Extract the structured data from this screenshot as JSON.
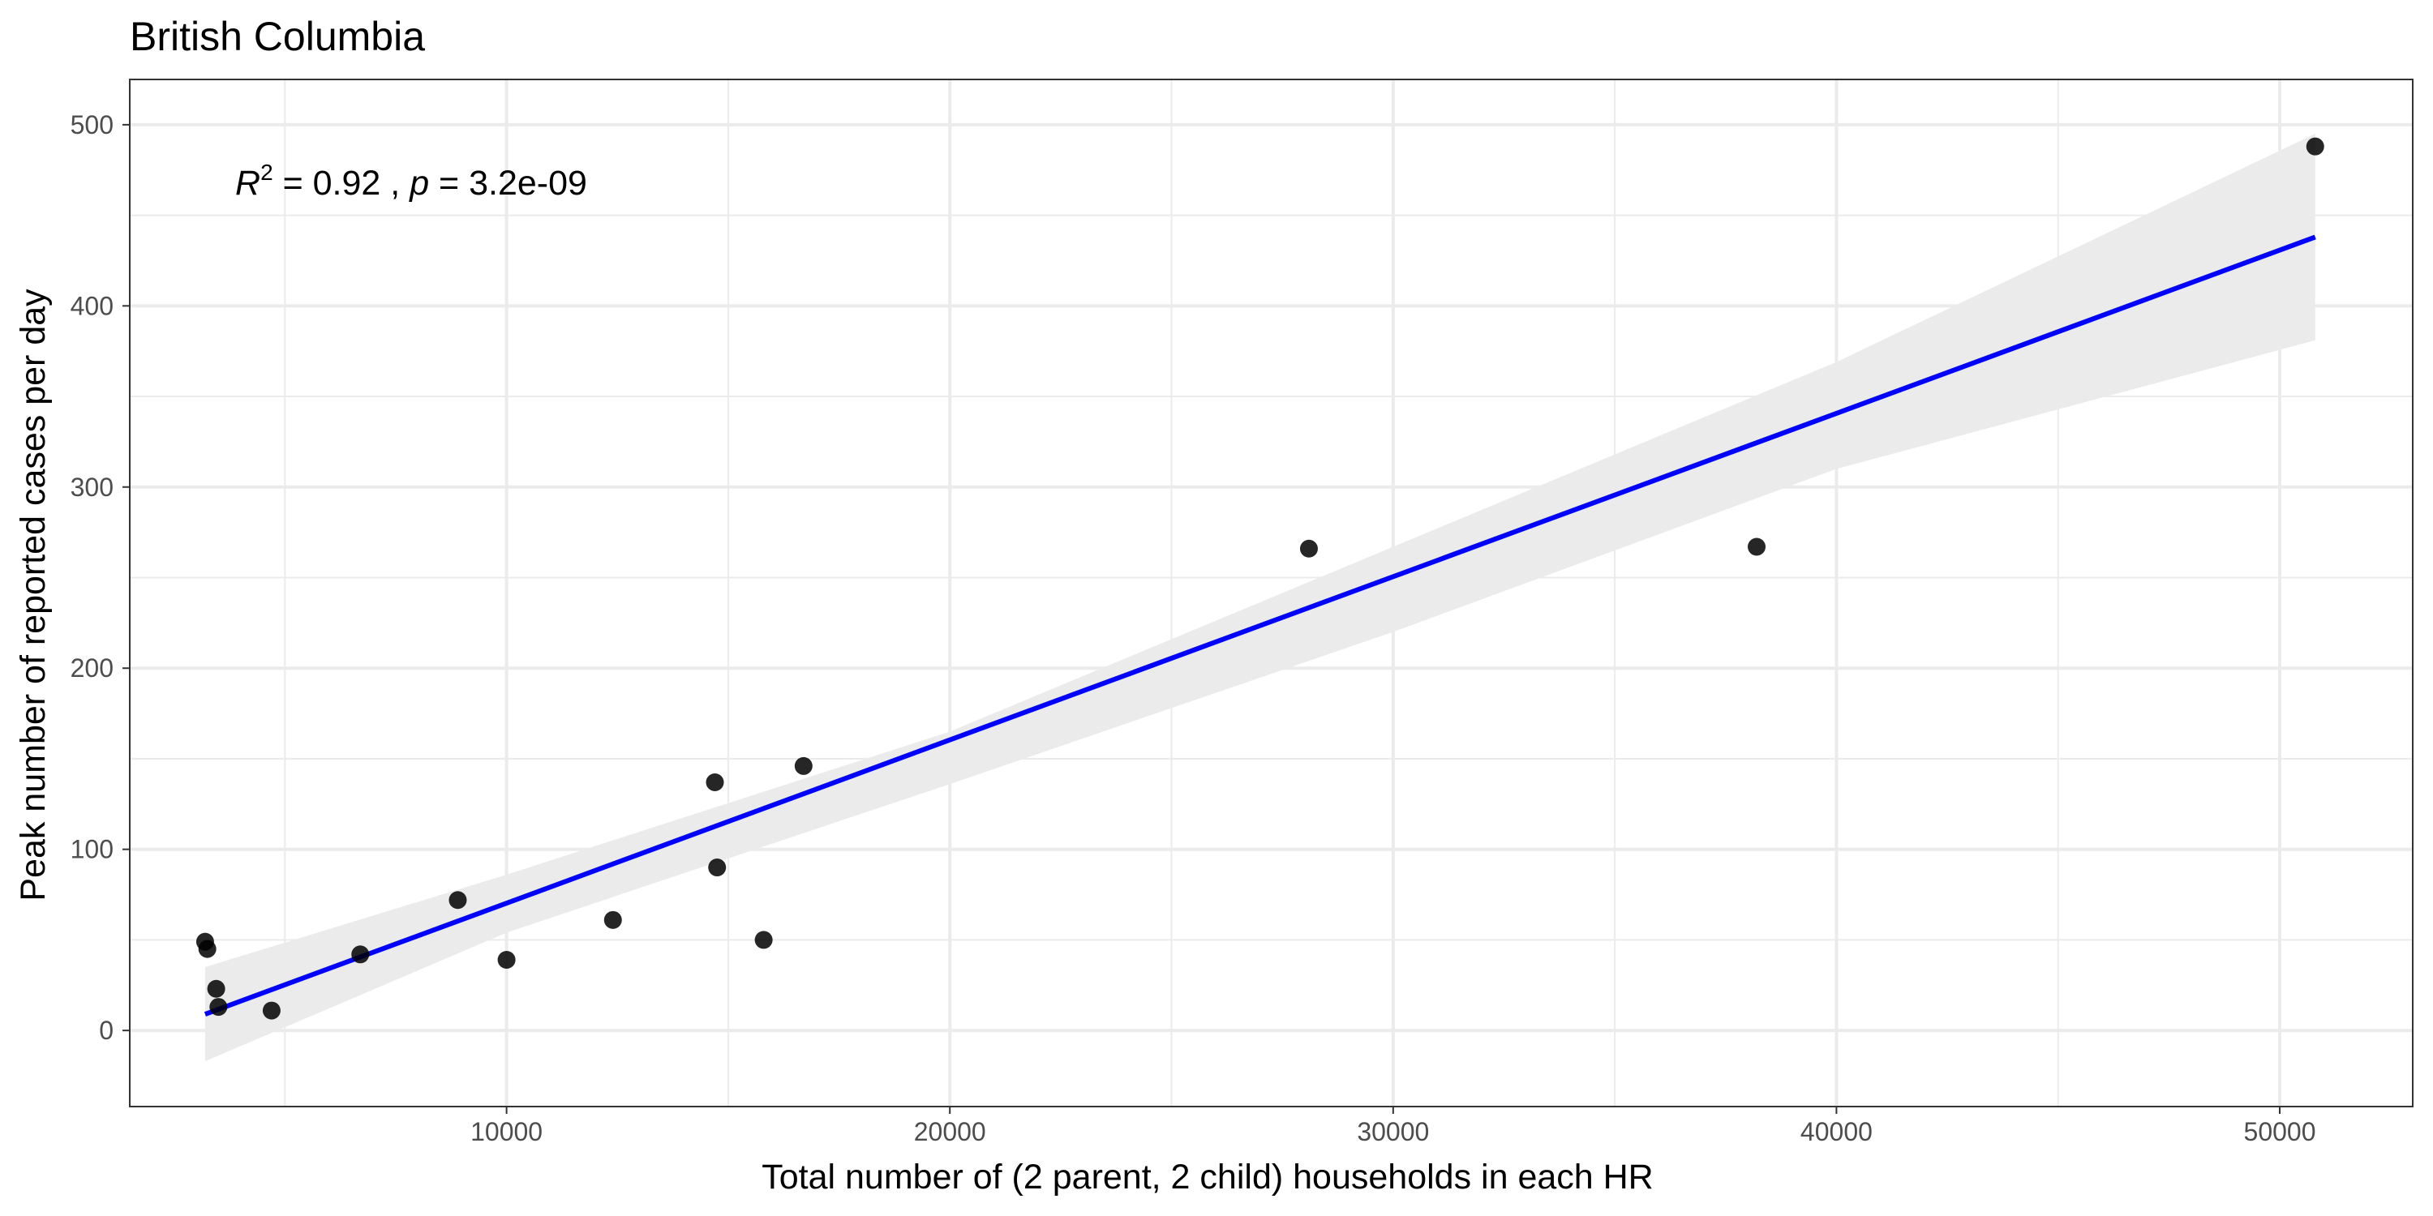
{
  "chart_data": {
    "type": "scatter",
    "title": "British Columbia",
    "xlabel": "Total number of (2 parent, 2 child) households in each HR",
    "ylabel": "Peak number of reported cases per day",
    "xlim": [
      1500,
      53000
    ],
    "ylim": [
      -42,
      525
    ],
    "x_ticks": [
      10000,
      20000,
      30000,
      40000,
      50000
    ],
    "y_ticks": [
      0,
      100,
      200,
      300,
      400,
      500
    ],
    "grid": true,
    "legend": "none",
    "annotation": {
      "r_symbol": "R",
      "r_exponent": "2",
      "r_value": " = 0.92 , ",
      "p_symbol": "p",
      "p_value": " = 3.2e-09"
    },
    "points": [
      {
        "x": 3200,
        "y": 49
      },
      {
        "x": 3250,
        "y": 45
      },
      {
        "x": 3450,
        "y": 23
      },
      {
        "x": 3500,
        "y": 13
      },
      {
        "x": 4700,
        "y": 11
      },
      {
        "x": 6700,
        "y": 42
      },
      {
        "x": 8900,
        "y": 72
      },
      {
        "x": 10000,
        "y": 39
      },
      {
        "x": 12400,
        "y": 61
      },
      {
        "x": 14700,
        "y": 137
      },
      {
        "x": 14750,
        "y": 90
      },
      {
        "x": 15800,
        "y": 50
      },
      {
        "x": 16700,
        "y": 146
      },
      {
        "x": 28100,
        "y": 266
      },
      {
        "x": 38200,
        "y": 267
      },
      {
        "x": 50800,
        "y": 488
      }
    ],
    "fit_line": {
      "x": [
        3200,
        50800
      ],
      "y": [
        9,
        438
      ]
    },
    "confidence_band": {
      "x": [
        3200,
        10000,
        20000,
        30000,
        40000,
        50800
      ],
      "upper": [
        35,
        86,
        165,
        267,
        369,
        495
      ],
      "lower": [
        -17,
        54,
        136,
        220,
        310,
        381
      ]
    },
    "colors": {
      "fit_line": "#0000ff",
      "band": "#ebebeb",
      "point": "#000000",
      "grid": "#ebebeb",
      "panel_border": "#333333",
      "tick_label": "#4d4d4d"
    }
  }
}
